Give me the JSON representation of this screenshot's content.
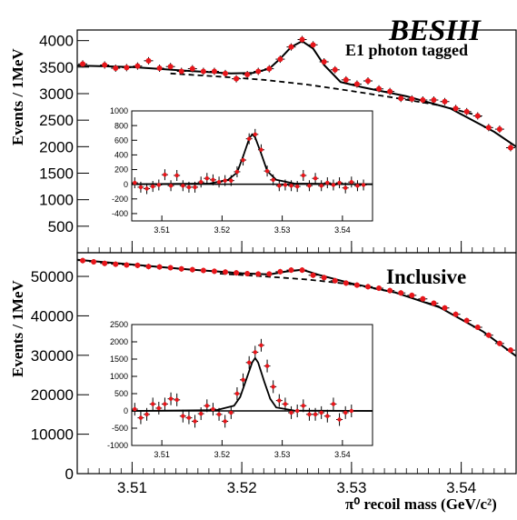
{
  "figure": {
    "brand": "BESIII",
    "xlabel": "π⁰ recoil mass (GeV/c²)"
  },
  "chart_data": [
    {
      "type": "scatter",
      "title": "E1 photon tagged",
      "ylabel": "Events / 1MeV",
      "xlim": [
        3.505,
        3.545
      ],
      "ylim": [
        0,
        4200
      ],
      "yticks": [
        "500",
        "1000",
        "1500",
        "2000",
        "2500",
        "3000",
        "3500",
        "4000"
      ],
      "xticks": [
        "3.51",
        "3.52",
        "3.53",
        "3.54"
      ],
      "series": [
        {
          "kind": "data",
          "x": [
            3.5055,
            3.5075,
            3.5085,
            3.5095,
            3.5105,
            3.5115,
            3.5125,
            3.5135,
            3.5145,
            3.5155,
            3.5165,
            3.5175,
            3.5185,
            3.5195,
            3.5205,
            3.5215,
            3.5225,
            3.5235,
            3.5245,
            3.5255,
            3.5265,
            3.5275,
            3.5285,
            3.5295,
            3.5305,
            3.5315,
            3.5325,
            3.5335,
            3.5345,
            3.5355,
            3.5365,
            3.5375,
            3.5385,
            3.5395,
            3.5405,
            3.5415,
            3.5425,
            3.5435,
            3.5445
          ],
          "y": [
            3560,
            3540,
            3480,
            3490,
            3520,
            3620,
            3480,
            3510,
            3420,
            3470,
            3420,
            3420,
            3380,
            3280,
            3360,
            3420,
            3470,
            3650,
            3880,
            4020,
            3920,
            3600,
            3450,
            3260,
            3180,
            3240,
            3090,
            3040,
            2910,
            2900,
            2880,
            2880,
            2850,
            2720,
            2660,
            2580,
            2360,
            2330,
            1980
          ]
        },
        {
          "kind": "total_fit",
          "x": [
            3.505,
            3.51,
            3.515,
            3.519,
            3.521,
            3.5225,
            3.5235,
            3.5245,
            3.5255,
            3.5265,
            3.5275,
            3.529,
            3.531,
            3.535,
            3.539,
            3.543,
            3.545
          ],
          "y": [
            3530,
            3500,
            3430,
            3380,
            3390,
            3470,
            3660,
            3880,
            3990,
            3850,
            3540,
            3220,
            3120,
            2950,
            2720,
            2280,
            2000
          ]
        },
        {
          "kind": "background",
          "x": [
            3.5135,
            3.518,
            3.522,
            3.526,
            3.53,
            3.534,
            3.538,
            3.542
          ],
          "y": [
            3380,
            3320,
            3260,
            3170,
            3050,
            2920,
            2780,
            2560
          ]
        }
      ],
      "inset": {
        "xlim": [
          3.505,
          3.545
        ],
        "ylim": [
          -500,
          1000
        ],
        "yticks": [
          "1000",
          "800",
          "600",
          "400",
          "200",
          "0",
          "-200",
          "-400"
        ],
        "xticks": [
          "3.51",
          "3.52",
          "3.53",
          "3.54"
        ],
        "x": [
          3.5055,
          3.5065,
          3.5075,
          3.5085,
          3.5095,
          3.5105,
          3.5115,
          3.5125,
          3.5135,
          3.5145,
          3.5155,
          3.5165,
          3.5175,
          3.5185,
          3.5195,
          3.5205,
          3.5215,
          3.5225,
          3.5235,
          3.5245,
          3.5255,
          3.5265,
          3.5275,
          3.5285,
          3.5295,
          3.5305,
          3.5315,
          3.5325,
          3.5335,
          3.5345,
          3.5355,
          3.5365,
          3.5375,
          3.5385,
          3.5395,
          3.5405,
          3.5415,
          3.5425,
          3.5435
        ],
        "y": [
          20,
          -40,
          -60,
          -30,
          -10,
          130,
          -20,
          120,
          -20,
          -40,
          -40,
          30,
          80,
          60,
          30,
          50,
          50,
          170,
          330,
          620,
          680,
          470,
          180,
          60,
          -20,
          -10,
          -20,
          -30,
          120,
          -20,
          80,
          -20,
          20,
          -10,
          20,
          -50,
          30,
          -20,
          -10
        ],
        "fit_x": [
          3.505,
          3.518,
          3.521,
          3.5225,
          3.5235,
          3.5245,
          3.525,
          3.5255,
          3.5265,
          3.5275,
          3.529,
          3.532,
          3.545
        ],
        "fit_y": [
          0,
          10,
          60,
          160,
          380,
          620,
          680,
          640,
          420,
          180,
          60,
          10,
          0
        ]
      }
    },
    {
      "type": "scatter",
      "title": "Inclusive",
      "ylabel": "Events / 1MeV",
      "xlim": [
        3.505,
        3.545
      ],
      "ylim": [
        0,
        56000
      ],
      "yticks": [
        "0",
        "10000",
        "20000",
        "30000",
        "40000",
        "50000"
      ],
      "xticks": [
        "3.51",
        "3.52",
        "3.53",
        "3.54"
      ],
      "series": [
        {
          "kind": "data",
          "x": [
            3.5055,
            3.5065,
            3.5075,
            3.5085,
            3.5095,
            3.5105,
            3.5115,
            3.5125,
            3.5135,
            3.5145,
            3.5155,
            3.5165,
            3.5175,
            3.5185,
            3.5195,
            3.5205,
            3.5215,
            3.5225,
            3.5235,
            3.5245,
            3.5255,
            3.5265,
            3.5275,
            3.5285,
            3.5295,
            3.5305,
            3.5315,
            3.5325,
            3.5335,
            3.5345,
            3.5355,
            3.5365,
            3.5375,
            3.5385,
            3.5395,
            3.5405,
            3.5415,
            3.5425,
            3.5435,
            3.5445
          ],
          "y": [
            54000,
            53700,
            53300,
            53100,
            52900,
            52800,
            52500,
            52400,
            52200,
            51900,
            51700,
            51500,
            51300,
            51100,
            50900,
            50700,
            50600,
            50600,
            51200,
            51600,
            51600,
            50300,
            49700,
            48900,
            48300,
            47800,
            47400,
            47000,
            46400,
            45800,
            45200,
            44300,
            43200,
            42000,
            40400,
            38800,
            37100,
            35100,
            33000,
            31300
          ]
        },
        {
          "kind": "total_fit",
          "x": [
            3.505,
            3.51,
            3.515,
            3.52,
            3.5225,
            3.524,
            3.5255,
            3.527,
            3.53,
            3.534,
            3.538,
            3.542,
            3.545
          ],
          "y": [
            54200,
            53000,
            51800,
            50800,
            50500,
            51200,
            51700,
            50400,
            48200,
            45900,
            42200,
            36000,
            29800
          ]
        },
        {
          "kind": "background",
          "x": [
            3.518,
            3.522,
            3.526,
            3.53,
            3.534,
            3.538
          ],
          "y": [
            50700,
            50000,
            49200,
            48000,
            45900,
            42300
          ]
        }
      ],
      "inset": {
        "xlim": [
          3.505,
          3.545
        ],
        "ylim": [
          -1000,
          2500
        ],
        "yticks": [
          "2500",
          "2000",
          "1500",
          "1000",
          "500",
          "0",
          "-500",
          "-1000"
        ],
        "xticks": [
          "3.51",
          "3.52",
          "3.53",
          "3.54"
        ],
        "x": [
          3.5055,
          3.5065,
          3.5075,
          3.5085,
          3.5095,
          3.5105,
          3.5115,
          3.5125,
          3.5135,
          3.5145,
          3.5155,
          3.5165,
          3.5175,
          3.5185,
          3.5195,
          3.5205,
          3.5215,
          3.5225,
          3.5235,
          3.5245,
          3.5255,
          3.5265,
          3.5275,
          3.5285,
          3.5295,
          3.5305,
          3.5315,
          3.5325,
          3.5335,
          3.5345,
          3.5355,
          3.5365,
          3.5375,
          3.5385,
          3.5395,
          3.5405,
          3.5415
        ],
        "y": [
          50,
          -200,
          -100,
          200,
          80,
          200,
          350,
          320,
          -150,
          -200,
          -300,
          -80,
          150,
          50,
          -100,
          -300,
          -50,
          500,
          900,
          1400,
          1700,
          1900,
          1300,
          700,
          300,
          200,
          -50,
          0,
          150,
          -100,
          -100,
          -50,
          -150,
          200,
          -250,
          -50,
          0
        ],
        "fit_x": [
          3.505,
          3.519,
          3.522,
          3.523,
          3.524,
          3.525,
          3.5255,
          3.526,
          3.527,
          3.528,
          3.529,
          3.532,
          3.545
        ],
        "fit_y": [
          0,
          20,
          150,
          400,
          900,
          1400,
          1530,
          1400,
          850,
          350,
          100,
          10,
          0
        ]
      }
    }
  ]
}
